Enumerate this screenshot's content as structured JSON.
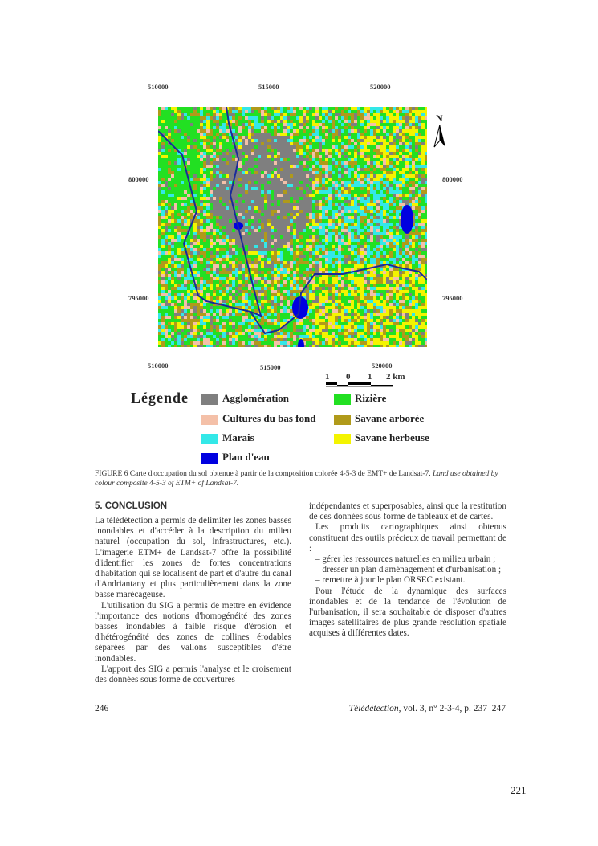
{
  "figure": {
    "coords_top": [
      "510000",
      "515000",
      "520000"
    ],
    "coords_bottom": [
      "510000",
      "515000",
      "520000"
    ],
    "coords_left": [
      "800000",
      "795000"
    ],
    "coords_right": [
      "800000",
      "795000"
    ],
    "north_label": "N",
    "scale": {
      "labels": [
        "1",
        "0",
        "1",
        "2 km"
      ]
    },
    "legend": {
      "title": "Légende",
      "items": [
        {
          "label": "Agglomération",
          "color": "#7f7f7f"
        },
        {
          "label": "Cultures du bas fond",
          "color": "#f4c0a8"
        },
        {
          "label": "Marais",
          "color": "#33e8e8"
        },
        {
          "label": "Plan d'eau",
          "color": "#0000e0"
        },
        {
          "label": "Rizière",
          "color": "#22e022"
        },
        {
          "label": "Savane arborée",
          "color": "#b09a1a"
        },
        {
          "label": "Savane herbeuse",
          "color": "#f4f400"
        }
      ],
      "river_color": "#1a2a9a"
    },
    "caption_main": "FIGURE 6 Carte d'occupation du sol obtenue à partir de la composition colorée 4-5-3 de EMT+ de Landsat-7. ",
    "caption_en": "Land use obtained by colour composite 4-5-3 of ETM+ of Landsat-7."
  },
  "section": {
    "heading": "5. CONCLUSION",
    "left": [
      "La télédétection a permis de délimiter les zones basses inondables et d'accéder à la description du milieu naturel (occupation du sol, infrastructures, etc.). L'imagerie ETM+ de Landsat-7 offre la possibilité d'identifier les zones de fortes concentrations d'habitation qui se localisent de part et d'autre du canal d'Andriantany et plus particulièrement dans la zone basse marécageuse.",
      "L'utilisation du SIG a permis de mettre en évidence l'importance des notions d'homogénéité des zones basses inondables à faible risque d'érosion et d'hétérogénéité des zones de collines érodables séparées par des vallons susceptibles d'être inondables.",
      "L'apport des SIG a permis l'analyse et le croisement des données sous forme de couvertures"
    ],
    "right": [
      "indépendantes et superposables, ainsi que la restitution de ces données sous forme de tableaux et de cartes.",
      "Les produits cartographiques ainsi obtenus constituent des outils précieux de travail permettant de :",
      "– gérer les ressources naturelles en milieu urbain ;",
      "– dresser un plan d'aménagement et d'urbanisation ;",
      "– remettre à jour le plan ORSEC existant.",
      "Pour l'étude de la dynamique des surfaces inondables et de la tendance de l'évolution de l'urbanisation, il sera souhaitable de disposer d'autres images satellitaires de plus grande résolution spatiale acquises à différentes dates."
    ]
  },
  "footer": {
    "page_number": "246",
    "journal": "Télédétection",
    "citation": ", vol. 3, n° 2-3-4, p. 237–247",
    "sheet_number": "221"
  }
}
